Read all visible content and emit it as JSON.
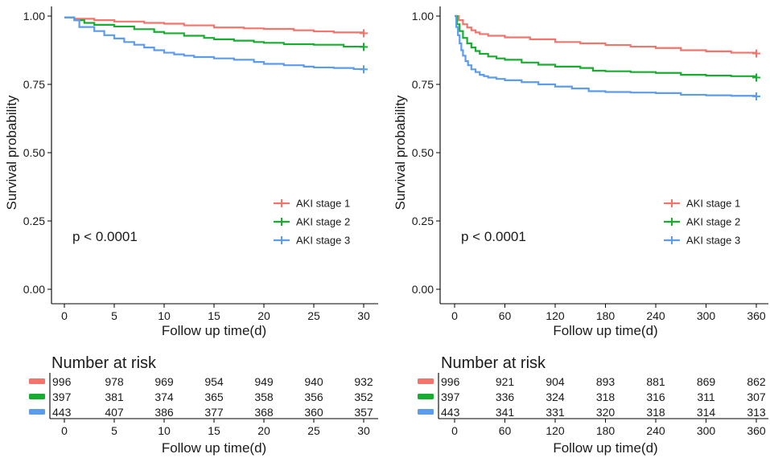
{
  "colors": {
    "stage1": "#F4736B",
    "stage2": "#17AE2F",
    "stage3": "#5C9CED"
  },
  "chart_data": [
    {
      "type": "line",
      "title": "",
      "xlabel": "Follow up time(d)",
      "ylabel": "Survival probability",
      "xlim": [
        0,
        30
      ],
      "ylim": [
        0,
        1
      ],
      "xticks": [
        "0",
        "5",
        "10",
        "15",
        "20",
        "25",
        "30"
      ],
      "yticks": [
        "0.00",
        "0.25",
        "0.50",
        "0.75",
        "1.00"
      ],
      "annotation": "p < 0.0001",
      "legend_position": "bottom-right",
      "series": [
        {
          "name": "AKI stage 1",
          "x": [
            0,
            1,
            3,
            5,
            8,
            10,
            12,
            15,
            18,
            20,
            23,
            25,
            27,
            30
          ],
          "y": [
            0.995,
            0.99,
            0.985,
            0.98,
            0.975,
            0.972,
            0.966,
            0.958,
            0.955,
            0.953,
            0.948,
            0.944,
            0.94,
            0.937
          ]
        },
        {
          "name": "AKI stage 2",
          "x": [
            0,
            1,
            2,
            3,
            5,
            7,
            9,
            10,
            12,
            14,
            15,
            17,
            19,
            20,
            22,
            25,
            28,
            30
          ],
          "y": [
            0.995,
            0.985,
            0.975,
            0.968,
            0.962,
            0.952,
            0.942,
            0.937,
            0.928,
            0.92,
            0.915,
            0.91,
            0.905,
            0.902,
            0.897,
            0.895,
            0.888,
            0.887
          ]
        },
        {
          "name": "AKI stage 3",
          "x": [
            0,
            1,
            1.5,
            3,
            4,
            5,
            6,
            7,
            8,
            9,
            10,
            11,
            12,
            13,
            15,
            17,
            19,
            20,
            22,
            24,
            25,
            27,
            29,
            30
          ],
          "y": [
            0.995,
            0.985,
            0.96,
            0.945,
            0.93,
            0.918,
            0.905,
            0.895,
            0.885,
            0.875,
            0.866,
            0.86,
            0.855,
            0.85,
            0.845,
            0.84,
            0.832,
            0.825,
            0.82,
            0.815,
            0.812,
            0.81,
            0.806,
            0.805
          ]
        }
      ],
      "risk_table": {
        "title": "Number at risk",
        "xlabel": "Follow up time(d)",
        "times": [
          "0",
          "5",
          "10",
          "15",
          "20",
          "25",
          "30"
        ],
        "rows": [
          [
            "996",
            "978",
            "969",
            "954",
            "949",
            "940",
            "932"
          ],
          [
            "397",
            "381",
            "374",
            "365",
            "358",
            "356",
            "352"
          ],
          [
            "443",
            "407",
            "386",
            "377",
            "368",
            "360",
            "357"
          ]
        ]
      }
    },
    {
      "type": "line",
      "title": "",
      "xlabel": "Follow up time(d)",
      "ylabel": "Survival probability",
      "xlim": [
        0,
        360
      ],
      "ylim": [
        0,
        1
      ],
      "xticks": [
        "0",
        "60",
        "120",
        "180",
        "240",
        "300",
        "360"
      ],
      "yticks": [
        "0.00",
        "0.25",
        "0.50",
        "0.75",
        "1.00"
      ],
      "annotation": "p < 0.0001",
      "legend_position": "bottom-right",
      "series": [
        {
          "name": "AKI stage 1",
          "x": [
            0,
            5,
            10,
            15,
            20,
            25,
            30,
            40,
            60,
            90,
            120,
            150,
            180,
            210,
            240,
            270,
            300,
            330,
            360
          ],
          "y": [
            1.0,
            0.985,
            0.97,
            0.958,
            0.948,
            0.94,
            0.934,
            0.928,
            0.922,
            0.915,
            0.905,
            0.9,
            0.894,
            0.888,
            0.883,
            0.875,
            0.871,
            0.866,
            0.863
          ]
        },
        {
          "name": "AKI stage 2",
          "x": [
            0,
            3,
            6,
            10,
            15,
            20,
            25,
            30,
            40,
            50,
            60,
            80,
            100,
            120,
            150,
            165,
            180,
            210,
            240,
            270,
            300,
            330,
            360
          ],
          "y": [
            1.0,
            0.97,
            0.945,
            0.92,
            0.9,
            0.885,
            0.872,
            0.862,
            0.852,
            0.845,
            0.84,
            0.83,
            0.822,
            0.815,
            0.81,
            0.8,
            0.798,
            0.795,
            0.792,
            0.785,
            0.782,
            0.78,
            0.775
          ]
        },
        {
          "name": "AKI stage 3",
          "x": [
            0,
            2,
            4,
            6,
            8,
            10,
            13,
            16,
            20,
            25,
            30,
            35,
            40,
            50,
            60,
            80,
            100,
            120,
            140,
            160,
            180,
            210,
            240,
            270,
            300,
            330,
            360
          ],
          "y": [
            1.0,
            0.96,
            0.93,
            0.9,
            0.875,
            0.855,
            0.835,
            0.82,
            0.805,
            0.795,
            0.785,
            0.78,
            0.775,
            0.77,
            0.765,
            0.758,
            0.75,
            0.742,
            0.735,
            0.725,
            0.722,
            0.72,
            0.718,
            0.712,
            0.71,
            0.708,
            0.706
          ]
        }
      ],
      "risk_table": {
        "title": "Number at risk",
        "xlabel": "Follow up time(d)",
        "times": [
          "0",
          "60",
          "120",
          "180",
          "240",
          "300",
          "360"
        ],
        "rows": [
          [
            "996",
            "921",
            "904",
            "893",
            "881",
            "869",
            "862"
          ],
          [
            "397",
            "336",
            "324",
            "318",
            "316",
            "311",
            "307"
          ],
          [
            "443",
            "341",
            "331",
            "320",
            "318",
            "314",
            "313"
          ]
        ]
      }
    }
  ]
}
